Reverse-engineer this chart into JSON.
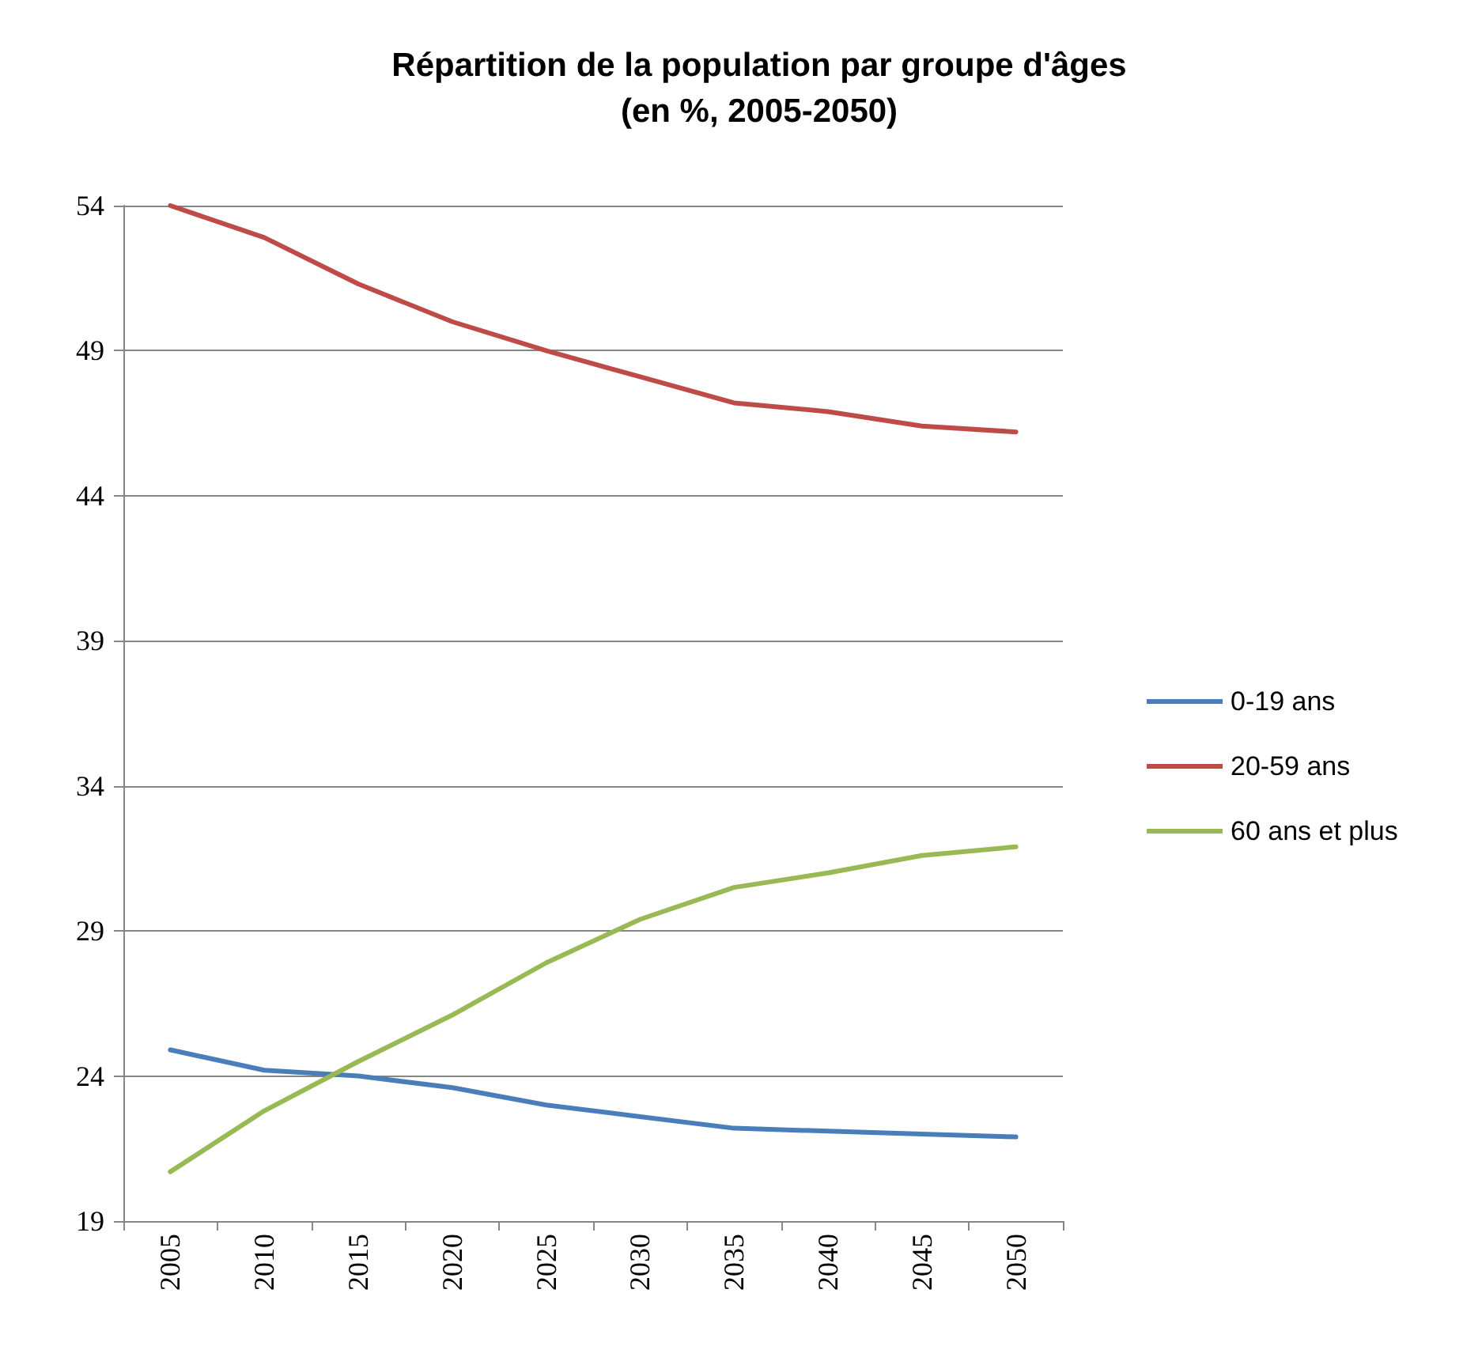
{
  "chart_data": {
    "type": "line",
    "title": "Répartition de la population par groupe d'âges",
    "subtitle": "(en %, 2005-2050)",
    "categories": [
      "2005",
      "2010",
      "2015",
      "2020",
      "2025",
      "2030",
      "2035",
      "2040",
      "2045",
      "2050"
    ],
    "series": [
      {
        "name": "0-19 ans",
        "color": "#4a7ebb",
        "values": [
          24.9,
          24.2,
          24.0,
          23.6,
          23.0,
          22.6,
          22.2,
          22.1,
          22.0,
          21.9
        ]
      },
      {
        "name": "20-59 ans",
        "color": "#be4b48",
        "values": [
          54.0,
          52.9,
          51.3,
          50.0,
          49.0,
          48.1,
          47.2,
          46.9,
          46.4,
          46.2
        ]
      },
      {
        "name": "60 ans et plus",
        "color": "#98b954",
        "values": [
          20.7,
          22.8,
          24.5,
          26.1,
          27.9,
          29.4,
          30.5,
          31.0,
          31.6,
          31.9
        ]
      }
    ],
    "ylim": [
      19,
      54
    ],
    "yticks": [
      19,
      24,
      29,
      34,
      39,
      44,
      49,
      54
    ],
    "grid": "y",
    "legend": "right",
    "marker": "none",
    "line_style": "solid"
  }
}
